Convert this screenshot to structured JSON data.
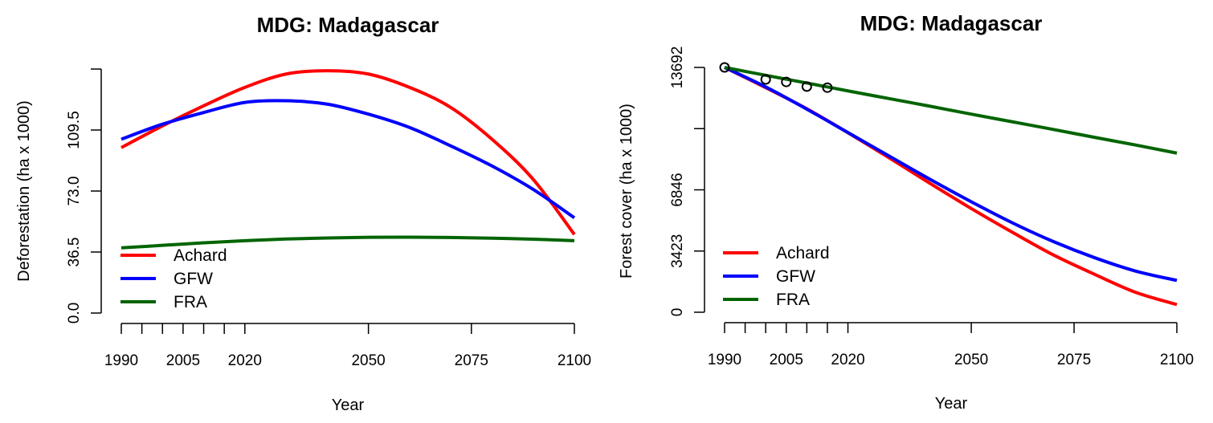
{
  "chart_data": [
    {
      "type": "line",
      "title": "MDG: Madagascar",
      "xlabel": "Year",
      "ylabel": "Deforestation (ha x 1000)",
      "xlim": [
        1990,
        2100
      ],
      "ylim": [
        0,
        146
      ],
      "xticks": [
        1990,
        1995,
        2000,
        2005,
        2010,
        2015,
        2020,
        2050,
        2075,
        2100
      ],
      "xtick_labels": [
        "1990",
        "",
        "",
        "2005",
        "",
        "",
        "2020",
        "2050",
        "2075",
        "2100"
      ],
      "yticks": [
        0,
        36.5,
        73,
        109.5,
        146
      ],
      "ytick_labels": [
        "0.0",
        "36.5",
        "73.0",
        "109.5",
        ""
      ],
      "legend": "bottom-left",
      "grid": false,
      "x": [
        1990,
        2000,
        2010,
        2020,
        2030,
        2040,
        2050,
        2060,
        2070,
        2080,
        2090,
        2100
      ],
      "series": [
        {
          "name": "Achard",
          "color": "#ff0000",
          "values": [
            99,
            112,
            124,
            135,
            143,
            145,
            143,
            135,
            123,
            104,
            80,
            47
          ]
        },
        {
          "name": "GFW",
          "color": "#0000ff",
          "values": [
            104,
            113,
            120,
            126,
            127,
            125,
            119,
            111,
            100,
            88,
            74,
            57
          ]
        },
        {
          "name": "FRA",
          "color": "#006400",
          "values": [
            39,
            40.5,
            42,
            43.3,
            44.3,
            44.9,
            45.3,
            45.4,
            45.2,
            44.8,
            44.2,
            43.3
          ]
        }
      ]
    },
    {
      "type": "line",
      "title": "MDG: Madagascar",
      "xlabel": "Year",
      "ylabel": "Forest cover (ha x 1000)",
      "xlim": [
        1990,
        2100
      ],
      "ylim": [
        0,
        13692
      ],
      "xticks": [
        1990,
        1995,
        2000,
        2005,
        2010,
        2015,
        2020,
        2050,
        2075,
        2100
      ],
      "xtick_labels": [
        "1990",
        "",
        "",
        "2005",
        "",
        "",
        "2020",
        "2050",
        "2075",
        "2100"
      ],
      "yticks": [
        0,
        3423,
        6846,
        10269,
        13692
      ],
      "ytick_labels": [
        "0",
        "3423",
        "6846",
        "",
        "13692"
      ],
      "legend": "bottom-left",
      "grid": false,
      "x": [
        1990,
        2000,
        2010,
        2020,
        2030,
        2040,
        2050,
        2060,
        2070,
        2080,
        2090,
        2100
      ],
      "series": [
        {
          "name": "Achard",
          "color": "#ff0000",
          "values": [
            13692,
            12560,
            11380,
            10040,
            8640,
            7200,
            5800,
            4470,
            3200,
            2120,
            1110,
            430
          ]
        },
        {
          "name": "GFW",
          "color": "#0000ff",
          "values": [
            13692,
            12600,
            11360,
            10050,
            8740,
            7430,
            6180,
            5000,
            3950,
            3050,
            2300,
            1780
          ]
        },
        {
          "name": "FRA",
          "color": "#006400",
          "values": [
            13692,
            13250,
            12820,
            12380,
            11950,
            11520,
            11080,
            10650,
            10220,
            9780,
            9350,
            8900
          ]
        }
      ],
      "points": {
        "x": [
          1990,
          2000,
          2005,
          2010,
          2015
        ],
        "y": [
          13692,
          13020,
          12880,
          12620,
          12560
        ]
      }
    }
  ]
}
